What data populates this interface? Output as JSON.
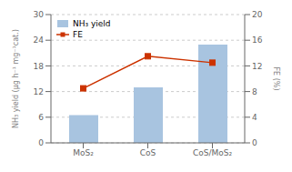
{
  "chart_data": {
    "type": "bar",
    "categories": [
      "MoS₂",
      "CoS",
      "CoS/MoS₂"
    ],
    "series": [
      {
        "name": "NH₃ yield",
        "type": "bar",
        "color": "#a8c4e0",
        "values": [
          6.5,
          13.0,
          23.0
        ]
      },
      {
        "name": "FE",
        "type": "line",
        "color": "#cc3300",
        "marker": "square",
        "axis": "y2",
        "values": [
          8.5,
          13.5,
          12.5
        ]
      }
    ],
    "ylabel": "NH₃ yield (μg h⁻¹ mg⁻¹cat.)",
    "y2label": "FE (%)",
    "ylim": [
      0,
      30
    ],
    "yticks": [
      0,
      6,
      12,
      18,
      24,
      30
    ],
    "y2lim": [
      0,
      20
    ],
    "y2ticks": [
      0,
      4,
      8,
      12,
      16,
      20
    ],
    "grid": true,
    "legend": "upper left"
  }
}
